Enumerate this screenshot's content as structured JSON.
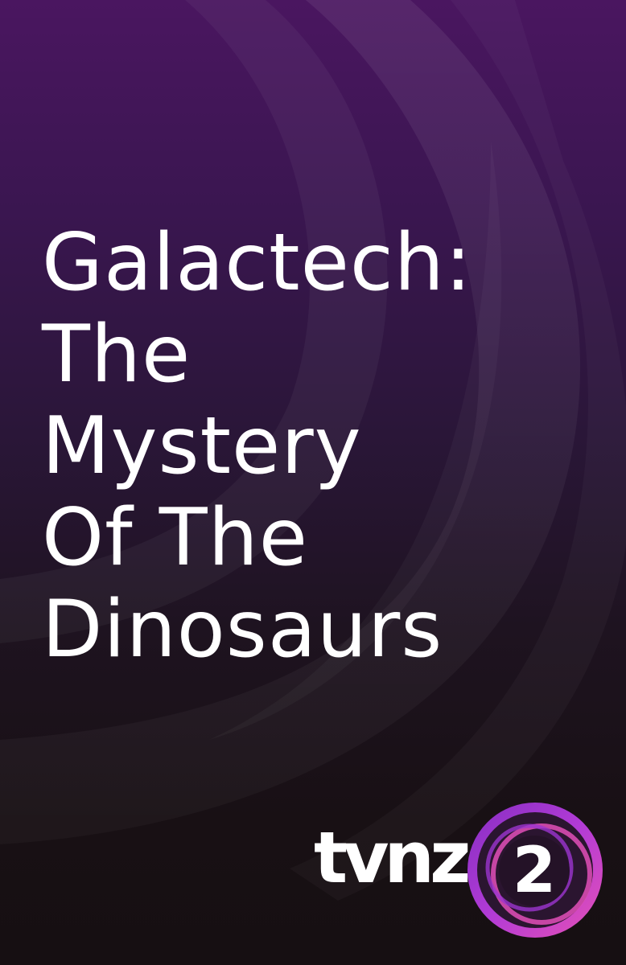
{
  "title": {
    "lines": [
      "Galactech:",
      "The",
      "Mystery",
      "Of The",
      "Dinosaurs"
    ]
  },
  "brand": {
    "wordmark": "tvnz",
    "channel_number": "2",
    "colors": {
      "ring_outer": "#b23bd6",
      "ring_inner": "#e24fb8",
      "badge_fill": "#2b1530"
    }
  },
  "colors": {
    "background_top": "#4a1660",
    "background_bottom": "#160f12",
    "title_text": "#ffffff"
  }
}
